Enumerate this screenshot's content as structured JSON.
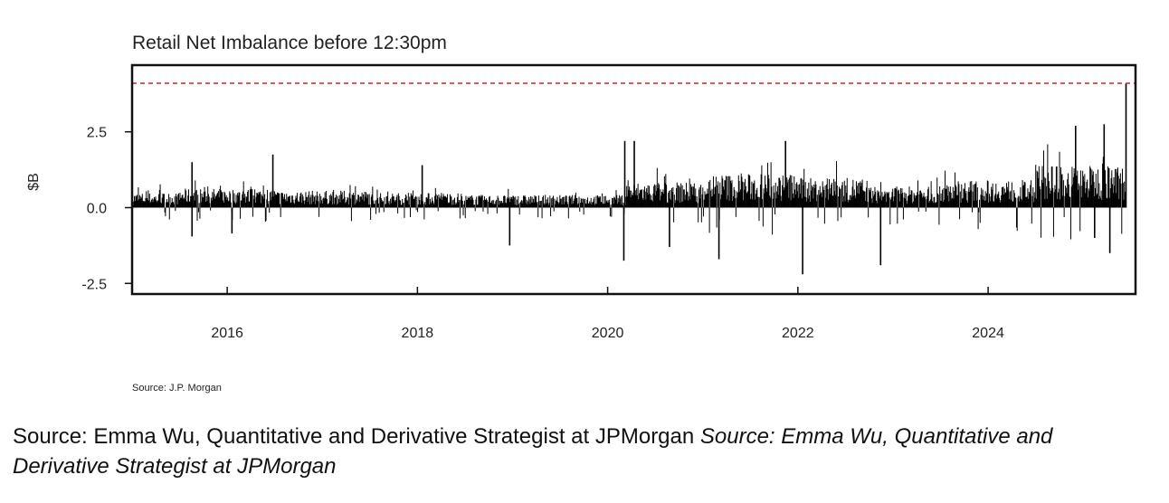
{
  "chart_data": {
    "type": "bar",
    "title": "Retail Net Imbalance before 12:30pm",
    "xlabel": "",
    "ylabel": "$B",
    "xlim": [
      2015.0,
      2025.55
    ],
    "ylim": [
      -2.85,
      4.7
    ],
    "yticks": [
      -2.5,
      0.0,
      2.5
    ],
    "ytick_labels": [
      "-2.5",
      "0.0",
      "2.5"
    ],
    "xticks": [
      2016,
      2018,
      2020,
      2022,
      2024
    ],
    "xtick_labels": [
      "2016",
      "2018",
      "2020",
      "2022",
      "2024"
    ],
    "reference_line": {
      "y": 4.1,
      "color": "#e03030",
      "style": "dashed"
    },
    "grid": false,
    "series": [
      {
        "name": "Retail Net Imbalance",
        "baseline_by_period": [
          {
            "from": 2015.0,
            "to": 2015.5,
            "typical": 0.35
          },
          {
            "from": 2015.5,
            "to": 2016.5,
            "typical": 0.45
          },
          {
            "from": 2016.5,
            "to": 2017.5,
            "typical": 0.4
          },
          {
            "from": 2017.5,
            "to": 2018.5,
            "typical": 0.35
          },
          {
            "from": 2018.5,
            "to": 2019.5,
            "typical": 0.3
          },
          {
            "from": 2019.5,
            "to": 2020.2,
            "typical": 0.3
          },
          {
            "from": 2020.2,
            "to": 2021.0,
            "typical": 0.6
          },
          {
            "from": 2021.0,
            "to": 2022.0,
            "typical": 0.8
          },
          {
            "from": 2022.0,
            "to": 2022.7,
            "typical": 0.7
          },
          {
            "from": 2022.7,
            "to": 2023.5,
            "typical": 0.5
          },
          {
            "from": 2023.5,
            "to": 2024.5,
            "typical": 0.65
          },
          {
            "from": 2024.5,
            "to": 2025.55,
            "typical": 1.0
          }
        ],
        "notable_values": [
          {
            "x": 2015.63,
            "value": 1.5
          },
          {
            "x": 2015.63,
            "value": -0.95
          },
          {
            "x": 2016.05,
            "value": -0.85
          },
          {
            "x": 2016.48,
            "value": 1.75
          },
          {
            "x": 2018.05,
            "value": 1.4
          },
          {
            "x": 2018.97,
            "value": -1.25
          },
          {
            "x": 2020.18,
            "value": 2.2
          },
          {
            "x": 2020.17,
            "value": -1.75
          },
          {
            "x": 2020.28,
            "value": 2.2
          },
          {
            "x": 2020.65,
            "value": -1.3
          },
          {
            "x": 2021.17,
            "value": -1.7
          },
          {
            "x": 2021.87,
            "value": 2.2
          },
          {
            "x": 2022.05,
            "value": -2.2
          },
          {
            "x": 2022.87,
            "value": -1.9
          },
          {
            "x": 2024.92,
            "value": 2.7
          },
          {
            "x": 2025.12,
            "value": -1.0
          },
          {
            "x": 2025.22,
            "value": 2.75
          },
          {
            "x": 2025.28,
            "value": -1.5
          },
          {
            "x": 2025.45,
            "value": 4.1
          }
        ]
      }
    ],
    "source_note": "Source:  J.P.  Morgan"
  },
  "caption": {
    "regular": "Source: Emma Wu, Quantitative and Derivative Strategist at JPMorgan ",
    "italic": "Source: Emma Wu, Quantitative and Derivative Strategist at JPMorgan"
  }
}
